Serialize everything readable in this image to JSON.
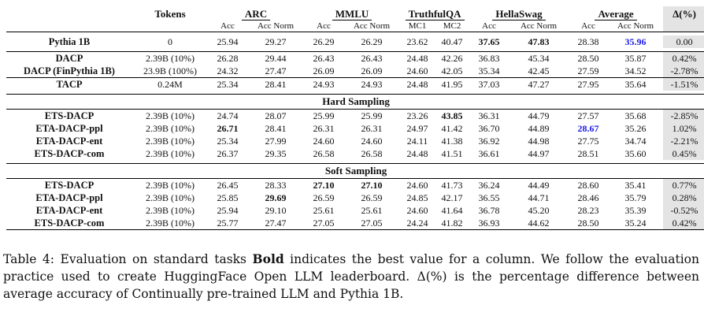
{
  "table": {
    "groups": [
      "Tokens",
      "ARC",
      "MMLU",
      "TruthfulQA",
      "HellaSwag",
      "Average",
      "Δ(%)"
    ],
    "subcols": [
      "Acc",
      "Acc Norm",
      "Acc",
      "Acc Norm",
      "MC1",
      "MC2",
      "Acc",
      "Acc Norm",
      "Acc",
      "Acc Norm"
    ],
    "sections": {
      "hard": "Hard Sampling",
      "soft": "Soft Sampling"
    },
    "rows": {
      "pythia": [
        "Pythia 1B",
        "0",
        "25.94",
        "29.27",
        "26.29",
        "26.29",
        "23.62",
        "40.47",
        "37.65",
        "47.83",
        "28.38",
        "35.96",
        "0.00"
      ],
      "dacp": [
        "DACP",
        "2.39B (10%)",
        "26.28",
        "29.44",
        "26.43",
        "26.43",
        "24.48",
        "42.26",
        "36.83",
        "45.34",
        "28.50",
        "35.87",
        "0.42%"
      ],
      "dacp_fin": [
        "DACP (FinPythia 1B)",
        "23.9B (100%)",
        "24.32",
        "27.47",
        "26.09",
        "26.09",
        "24.60",
        "42.05",
        "35.34",
        "42.45",
        "27.59",
        "34.52",
        "-2.78%"
      ],
      "tacp": [
        "TACP",
        "0.24M",
        "25.34",
        "28.41",
        "24.93",
        "24.93",
        "24.48",
        "41.95",
        "37.03",
        "47.27",
        "27.95",
        "35.64",
        "-1.51%"
      ],
      "hard_ets": [
        "ETS-DACP",
        "2.39B (10%)",
        "24.74",
        "28.07",
        "25.99",
        "25.99",
        "23.26",
        "43.85",
        "36.31",
        "44.79",
        "27.57",
        "35.68",
        "-2.85%"
      ],
      "hard_ppl": [
        "ETA-DACP-ppl",
        "2.39B (10%)",
        "26.71",
        "28.41",
        "26.31",
        "26.31",
        "24.97",
        "41.42",
        "36.70",
        "44.89",
        "28.67",
        "35.26",
        "1.02%"
      ],
      "hard_ent": [
        "ETA-DACP-ent",
        "2.39B (10%)",
        "25.34",
        "27.99",
        "24.60",
        "24.60",
        "24.11",
        "41.38",
        "36.92",
        "44.98",
        "27.75",
        "34.74",
        "-2.21%"
      ],
      "hard_com": [
        "ETS-DACP-com",
        "2.39B (10%)",
        "26.37",
        "29.35",
        "26.58",
        "26.58",
        "24.48",
        "41.51",
        "36.61",
        "44.97",
        "28.51",
        "35.60",
        "0.45%"
      ],
      "soft_ets": [
        "ETS-DACP",
        "2.39B (10%)",
        "26.45",
        "28.33",
        "27.10",
        "27.10",
        "24.60",
        "41.73",
        "36.24",
        "44.49",
        "28.60",
        "35.41",
        "0.77%"
      ],
      "soft_ppl": [
        "ETA-DACP-ppl",
        "2.39B (10%)",
        "25.85",
        "29.69",
        "26.59",
        "26.59",
        "24.85",
        "42.17",
        "36.55",
        "44.71",
        "28.46",
        "35.79",
        "0.28%"
      ],
      "soft_ent": [
        "ETA-DACP-ent",
        "2.39B (10%)",
        "25.94",
        "29.10",
        "25.61",
        "25.61",
        "24.60",
        "41.64",
        "36.78",
        "45.20",
        "28.23",
        "35.39",
        "-0.52%"
      ],
      "soft_com": [
        "ETS-DACP-com",
        "2.39B (10%)",
        "25.77",
        "27.47",
        "27.05",
        "27.05",
        "24.24",
        "41.82",
        "36.93",
        "44.62",
        "28.50",
        "35.24",
        "0.42%"
      ]
    }
  },
  "caption": {
    "prefix": "Table 4: Evaluation on standard tasks ",
    "bold": "Bold",
    "suffix": " indicates the best value for a column. We follow the evaluation practice used to create HuggingFace Open LLM leaderboard. Δ(%) is the percentage difference between average accuracy of Continually pre-trained LLM and Pythia 1B."
  },
  "colors": {
    "highlight_blue": "#1a1ae6",
    "delta_shade": "#e4e4e4"
  }
}
